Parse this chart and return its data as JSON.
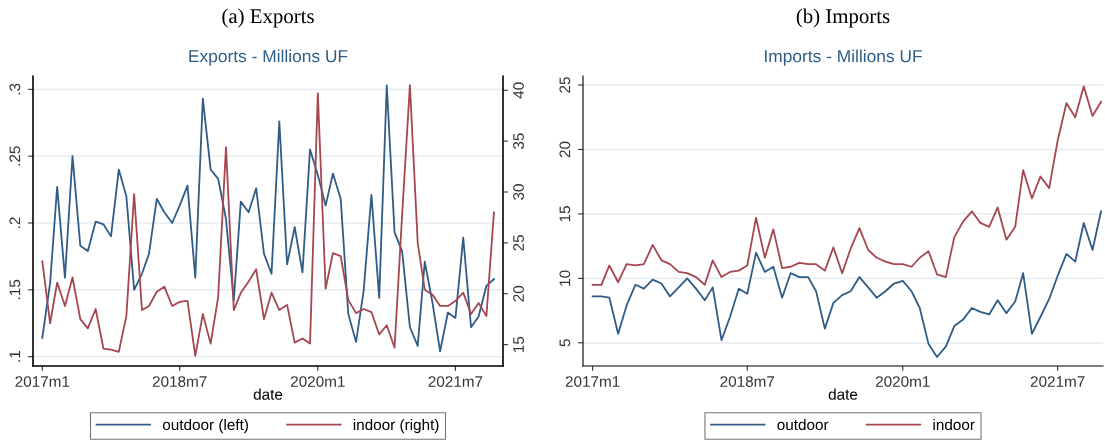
{
  "chart_data": [
    {
      "type": "line",
      "title": "(a) Exports",
      "subtitle": "Exports - Millions UF",
      "xlabel": "date",
      "x": [
        "2017-01",
        "2017-02",
        "2017-03",
        "2017-04",
        "2017-05",
        "2017-06",
        "2017-07",
        "2017-08",
        "2017-09",
        "2017-10",
        "2017-11",
        "2017-12",
        "2018-01",
        "2018-02",
        "2018-03",
        "2018-04",
        "2018-05",
        "2018-06",
        "2018-07",
        "2018-08",
        "2018-09",
        "2018-10",
        "2018-11",
        "2018-12",
        "2019-01",
        "2019-02",
        "2019-03",
        "2019-04",
        "2019-05",
        "2019-06",
        "2019-07",
        "2019-08",
        "2019-09",
        "2019-10",
        "2019-11",
        "2019-12",
        "2020-01",
        "2020-02",
        "2020-03",
        "2020-04",
        "2020-05",
        "2020-06",
        "2020-07",
        "2020-08",
        "2020-09",
        "2020-10",
        "2020-11",
        "2020-12",
        "2021-01",
        "2021-02",
        "2021-03",
        "2021-04",
        "2021-05",
        "2021-06",
        "2021-07",
        "2021-08",
        "2021-09",
        "2021-10",
        "2021-11",
        "2021-12"
      ],
      "series": [
        {
          "name": "outdoor (left)",
          "color": "#2f5d85",
          "values": [
            0.114,
            0.155,
            0.227,
            0.159,
            0.25,
            0.183,
            0.179,
            0.201,
            0.199,
            0.19,
            0.24,
            0.22,
            0.15,
            0.162,
            0.177,
            0.218,
            0.208,
            0.2,
            0.213,
            0.228,
            0.159,
            0.293,
            0.24,
            0.233,
            0.203,
            0.142,
            0.216,
            0.208,
            0.226,
            0.177,
            0.162,
            0.276,
            0.169,
            0.197,
            0.163,
            0.255,
            0.236,
            0.213,
            0.237,
            0.218,
            0.132,
            0.111,
            0.149,
            0.221,
            0.144,
            0.303,
            0.193,
            0.179,
            0.122,
            0.108,
            0.171,
            0.14,
            0.104,
            0.133,
            0.129,
            0.189,
            0.122,
            0.13,
            0.153,
            0.158
          ]
        },
        {
          "name": "indoor (right)",
          "color": "#a5474f",
          "axis": "y2",
          "values": [
            23.2,
            17.1,
            21.1,
            18.8,
            21.6,
            17.5,
            16.6,
            18.5,
            14.6,
            14.5,
            14.3,
            17.8,
            29.8,
            18.4,
            18.8,
            20.2,
            20.7,
            18.8,
            19.2,
            19.3,
            13.9,
            18.0,
            15.1,
            19.7,
            34.4,
            18.4,
            20.1,
            21.2,
            22.4,
            17.5,
            20.1,
            18.4,
            18.9,
            15.2,
            15.6,
            15.1,
            39.7,
            20.5,
            24.0,
            23.7,
            19.4,
            18.1,
            18.5,
            18.2,
            16.0,
            16.9,
            14.7,
            27.7,
            40.5,
            25.0,
            20.4,
            19.9,
            18.8,
            18.8,
            19.3,
            20.1,
            18.0,
            19.1,
            17.8,
            28.0
          ]
        }
      ],
      "xlim": [
        "2016-11-25",
        "2022-01-06"
      ],
      "xticks": [
        {
          "value": "2017-01",
          "label": "2017m1"
        },
        {
          "value": "2018-07",
          "label": "2018m7"
        },
        {
          "value": "2020-01",
          "label": "2020m1"
        },
        {
          "value": "2021-07",
          "label": "2021m7"
        }
      ],
      "ylim": [
        0.093,
        0.31
      ],
      "yticks": [
        {
          "value": 0.1,
          "label": ".1"
        },
        {
          "value": 0.15,
          "label": ".15"
        },
        {
          "value": 0.2,
          "label": ".2"
        },
        {
          "value": 0.25,
          "label": ".25"
        },
        {
          "value": 0.3,
          "label": ".3"
        }
      ],
      "y2lim": [
        12.9,
        41.4
      ],
      "y2ticks": [
        15,
        20,
        25,
        30,
        35,
        40
      ],
      "grid": "y",
      "legend": "bottom",
      "marker": "none",
      "line_style": "solid"
    },
    {
      "type": "line",
      "title": "(b) Imports",
      "subtitle": "Imports - Millions UF",
      "xlabel": "date",
      "x": [
        "2017-01",
        "2017-02",
        "2017-03",
        "2017-04",
        "2017-05",
        "2017-06",
        "2017-07",
        "2017-08",
        "2017-09",
        "2017-10",
        "2017-11",
        "2017-12",
        "2018-01",
        "2018-02",
        "2018-03",
        "2018-04",
        "2018-05",
        "2018-06",
        "2018-07",
        "2018-08",
        "2018-09",
        "2018-10",
        "2018-11",
        "2018-12",
        "2019-01",
        "2019-02",
        "2019-03",
        "2019-04",
        "2019-05",
        "2019-06",
        "2019-07",
        "2019-08",
        "2019-09",
        "2019-10",
        "2019-11",
        "2019-12",
        "2020-01",
        "2020-02",
        "2020-03",
        "2020-04",
        "2020-05",
        "2020-06",
        "2020-07",
        "2020-08",
        "2020-09",
        "2020-10",
        "2020-11",
        "2020-12",
        "2021-01",
        "2021-02",
        "2021-03",
        "2021-04",
        "2021-05",
        "2021-06",
        "2021-07",
        "2021-08",
        "2021-09",
        "2021-10",
        "2021-11",
        "2021-12"
      ],
      "series": [
        {
          "name": "outdoor",
          "color": "#2f5d85",
          "values": [
            8.6,
            8.6,
            8.5,
            5.7,
            7.9,
            9.5,
            9.2,
            9.9,
            9.6,
            8.6,
            9.3,
            10.0,
            9.2,
            8.3,
            9.3,
            5.2,
            7.0,
            9.2,
            8.8,
            12.0,
            10.5,
            10.9,
            8.5,
            10.4,
            10.1,
            10.1,
            9.0,
            6.1,
            8.1,
            8.7,
            9.0,
            10.1,
            9.3,
            8.5,
            9.0,
            9.6,
            9.8,
            9.0,
            7.7,
            4.9,
            3.9,
            4.7,
            6.3,
            6.8,
            7.7,
            7.4,
            7.2,
            8.3,
            7.3,
            8.2,
            10.4,
            5.7,
            7.0,
            8.4,
            10.2,
            11.9,
            11.3,
            14.3,
            12.2,
            15.2
          ]
        },
        {
          "name": "indoor",
          "color": "#a5474f",
          "values": [
            9.5,
            9.5,
            11.0,
            9.7,
            11.1,
            11.0,
            11.1,
            12.6,
            11.4,
            11.1,
            10.5,
            10.4,
            10.1,
            9.5,
            11.4,
            10.1,
            10.5,
            10.6,
            11.0,
            14.7,
            11.6,
            13.8,
            10.8,
            10.9,
            11.2,
            11.1,
            11.1,
            10.6,
            12.4,
            10.4,
            12.3,
            13.9,
            12.2,
            11.6,
            11.3,
            11.1,
            11.1,
            10.9,
            11.6,
            12.1,
            10.3,
            10.1,
            13.2,
            14.4,
            15.2,
            14.3,
            14.0,
            15.5,
            13.0,
            14.0,
            18.4,
            16.2,
            17.9,
            17.0,
            20.7,
            23.6,
            22.5,
            24.9,
            22.6,
            23.7
          ]
        }
      ],
      "xlim": [
        "2016-11-28",
        "2021-12-08"
      ],
      "xticks": [
        {
          "value": "2017-01",
          "label": "2017m1"
        },
        {
          "value": "2018-07",
          "label": "2018m7"
        },
        {
          "value": "2020-01",
          "label": "2020m1"
        },
        {
          "value": "2021-07",
          "label": "2021m7"
        }
      ],
      "ylim": [
        3.2,
        25.7
      ],
      "yticks": [
        5,
        10,
        15,
        20,
        25
      ],
      "grid": "y",
      "legend": "bottom",
      "marker": "none",
      "line_style": "solid"
    }
  ]
}
